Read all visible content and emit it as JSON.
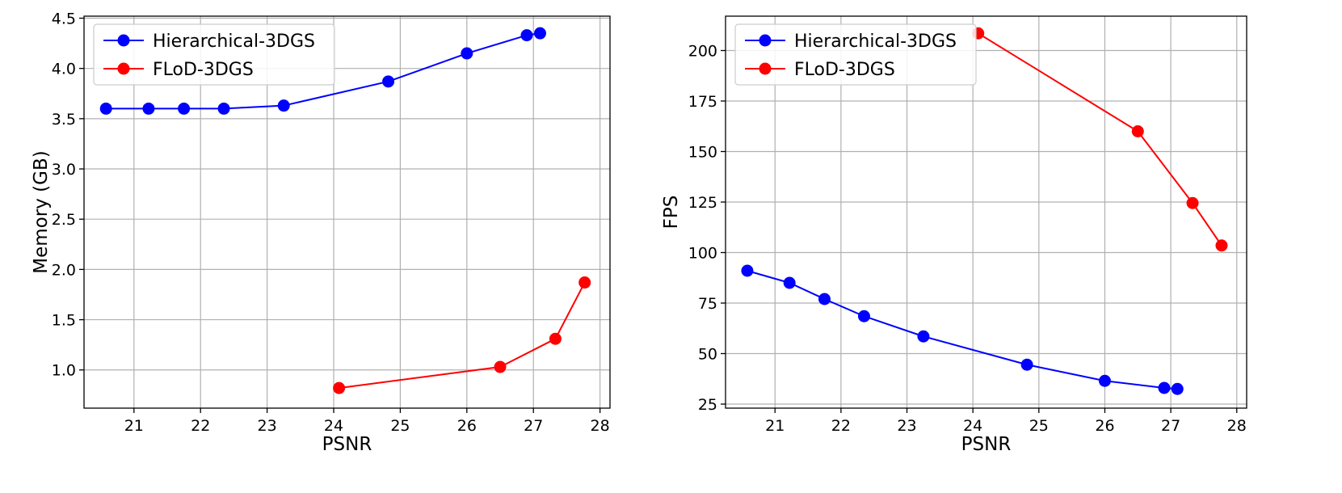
{
  "chart_data": [
    {
      "type": "line",
      "title": "",
      "xlabel": "PSNR",
      "ylabel": "Memory (GB)",
      "xlim": [
        20.25,
        28.15
      ],
      "ylim": [
        0.62,
        4.52
      ],
      "xticks": [
        21,
        22,
        23,
        24,
        25,
        26,
        27,
        28
      ],
      "yticks": [
        1.0,
        1.5,
        2.0,
        2.5,
        3.0,
        3.5,
        4.0,
        4.5
      ],
      "grid": true,
      "legend_position": "top-left",
      "series": [
        {
          "name": "Hierarchical-3DGS",
          "color": "#0000ff",
          "x": [
            20.58,
            21.22,
            21.75,
            22.35,
            23.25,
            24.82,
            26.0,
            26.9,
            27.1
          ],
          "y": [
            3.6,
            3.6,
            3.6,
            3.6,
            3.63,
            3.87,
            4.15,
            4.33,
            4.35
          ]
        },
        {
          "name": "FLoD-3DGS",
          "color": "#ff0000",
          "x": [
            24.08,
            26.5,
            27.33,
            27.77
          ],
          "y": [
            0.82,
            1.03,
            1.31,
            1.87
          ]
        }
      ]
    },
    {
      "type": "line",
      "title": "",
      "xlabel": "PSNR",
      "ylabel": "FPS",
      "xlim": [
        20.25,
        28.15
      ],
      "ylim": [
        23,
        217
      ],
      "xticks": [
        21,
        22,
        23,
        24,
        25,
        26,
        27,
        28
      ],
      "yticks": [
        25,
        50,
        75,
        100,
        125,
        150,
        175,
        200
      ],
      "grid": true,
      "legend_position": "top-left",
      "series": [
        {
          "name": "Hierarchical-3DGS",
          "color": "#0000ff",
          "x": [
            20.58,
            21.22,
            21.75,
            22.35,
            23.25,
            24.82,
            26.0,
            26.9,
            27.1
          ],
          "y": [
            91,
            85,
            77,
            68.5,
            58.5,
            44.5,
            36.5,
            33,
            32.5
          ]
        },
        {
          "name": "FLoD-3DGS",
          "color": "#ff0000",
          "x": [
            24.08,
            26.5,
            27.33,
            27.77
          ],
          "y": [
            208.5,
            160,
            124.5,
            103.5
          ]
        }
      ]
    }
  ]
}
